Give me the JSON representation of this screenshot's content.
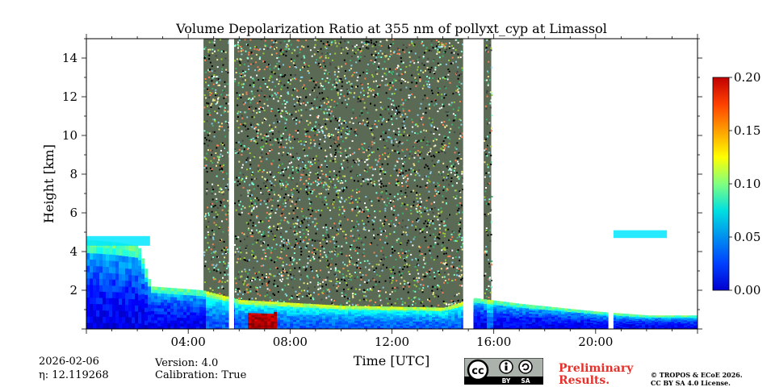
{
  "chart_data": {
    "type": "heatmap",
    "title": "Volume Depolarization Ratio at 355 nm of pollyxt_cyp at Limassol",
    "xlabel": "Time [UTC]",
    "ylabel": "Height [km]",
    "x_range_hours": [
      0,
      24
    ],
    "y_range_km": [
      0,
      15
    ],
    "x_ticks": [
      {
        "value": 4,
        "label": "04:00"
      },
      {
        "value": 8,
        "label": "08:00"
      },
      {
        "value": 12,
        "label": "12:00"
      },
      {
        "value": 16,
        "label": "16:00"
      },
      {
        "value": 20,
        "label": "20:00"
      }
    ],
    "y_ticks": [
      {
        "value": 2,
        "label": "2"
      },
      {
        "value": 4,
        "label": "4"
      },
      {
        "value": 6,
        "label": "6"
      },
      {
        "value": 8,
        "label": "8"
      },
      {
        "value": 10,
        "label": "10"
      },
      {
        "value": 12,
        "label": "12"
      },
      {
        "value": 14,
        "label": "14"
      }
    ],
    "colorbar": {
      "range": [
        0.0,
        0.2
      ],
      "ticks": [
        "0.00",
        "0.05",
        "0.10",
        "0.15",
        "0.20"
      ],
      "colormap": "jet"
    },
    "noisy_periods_hours": [
      [
        4.6,
        5.6
      ],
      [
        5.8,
        14.8
      ],
      [
        15.6,
        15.9
      ]
    ],
    "no_data_gaps_hours": [
      [
        5.6,
        5.8
      ],
      [
        14.8,
        15.2
      ],
      [
        20.5,
        20.7
      ]
    ],
    "boundary_layer_top_km": [
      [
        0,
        4.6
      ],
      [
        1,
        4.5
      ],
      [
        2,
        4.3
      ],
      [
        2.5,
        2.2
      ],
      [
        4.5,
        2.0
      ],
      [
        6,
        1.5
      ],
      [
        10,
        1.2
      ],
      [
        14,
        1.1
      ],
      [
        15.2,
        1.6
      ],
      [
        17,
        1.3
      ],
      [
        20,
        0.9
      ],
      [
        22,
        0.7
      ],
      [
        24,
        0.7
      ]
    ],
    "elevated_aerosol_layers": [
      {
        "start_h": 0,
        "end_h": 2.5,
        "bottom_km": 4.3,
        "top_km": 4.8,
        "depol": 0.07
      },
      {
        "start_h": 20.7,
        "end_h": 22.8,
        "bottom_km": 4.7,
        "top_km": 5.1,
        "depol": 0.07
      }
    ],
    "high_depol_region": {
      "start_h": 6.3,
      "end_h": 7.4,
      "bottom_km": 0.0,
      "top_km": 0.6,
      "depol": 0.18
    }
  },
  "meta": {
    "date": "2026-02-06",
    "eta": "η: 12.119268",
    "version": "Version: 4.0",
    "calibration": "Calibration: True"
  },
  "license": {
    "preliminary_line1": "Preliminary",
    "preliminary_line2": "Results.",
    "copyright_line1": "© TROPOS & ECoE 2026.",
    "copyright_line2": "CC BY SA 4.0 License.",
    "badge_cc": "cc",
    "badge_by": "BY",
    "badge_sa": "SA"
  }
}
